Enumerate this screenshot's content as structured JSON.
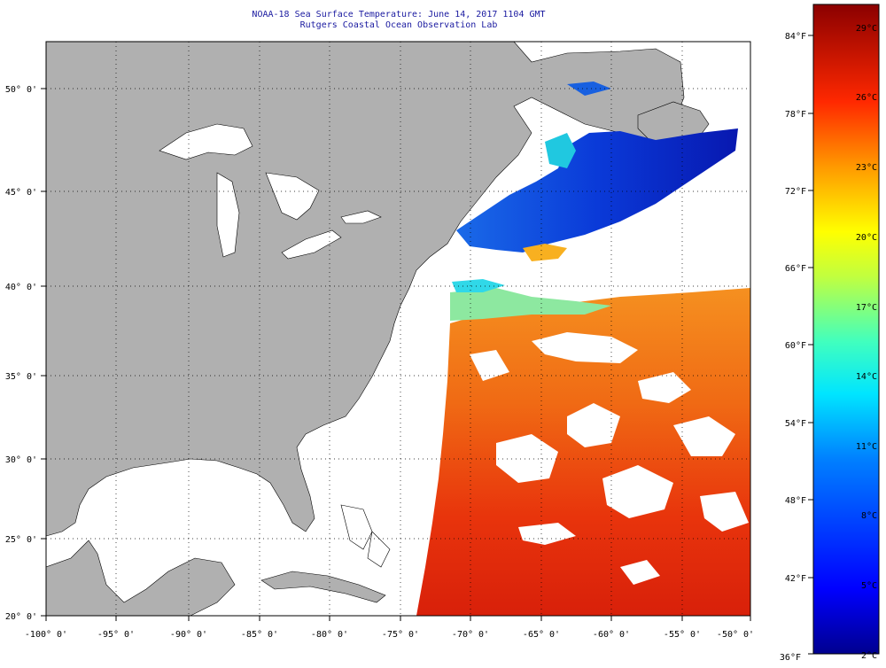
{
  "title_line1": "NOAA-18 Sea Surface Temperature:  June 14, 2017 1104 GMT",
  "title_line2": "Rutgers Coastal Ocean Observation Lab",
  "lat_labels": [
    "50° 0'",
    "45° 0'",
    "40° 0'",
    "35° 0'",
    "30° 0'",
    "25° 0'",
    "20° 0'"
  ],
  "lon_labels": [
    "-100° 0'",
    "-95° 0'",
    "-90° 0'",
    "-85° 0'",
    "-80° 0'",
    "-75° 0'",
    "-70° 0'",
    "-65° 0'",
    "-60° 0'",
    "-55° 0'",
    "-50° 0'"
  ],
  "colorbar_f": [
    "84°F",
    "78°F",
    "72°F",
    "66°F",
    "60°F",
    "54°F",
    "48°F",
    "42°F",
    "36°F"
  ],
  "colorbar_c": [
    "29°C",
    "26°C",
    "23°C",
    "20°C",
    "17°C",
    "14°C",
    "11°C",
    "8°C",
    "5°C",
    "2°C"
  ],
  "colors": {
    "land": "#b0b0b0",
    "water": "#ffffff",
    "title": "#1a1aa0",
    "cold": "#0a28d2",
    "warm": "#e8280a"
  }
}
